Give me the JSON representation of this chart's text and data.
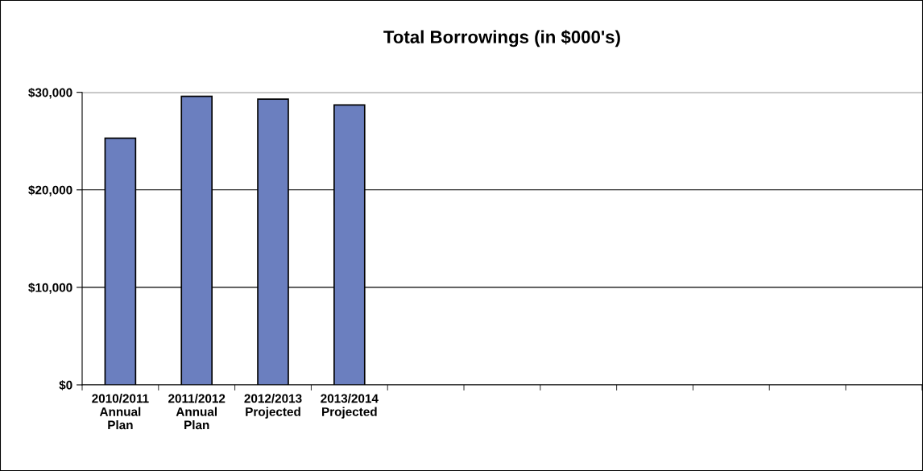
{
  "chart_data": {
    "type": "bar",
    "title": "Total Borrowings (in $000's)",
    "categories": [
      "2010/2011\nAnnual\nPlan",
      "2011/2012\nAnnual\nPlan",
      "2012/2013\nProjected",
      "2013/2014\nProjected",
      null,
      null,
      null,
      null,
      null,
      null,
      null
    ],
    "values": [
      25300,
      29600,
      29300,
      28700,
      null,
      null,
      null,
      null,
      null,
      null,
      null
    ],
    "color": "#6b7fbf",
    "ylim": [
      0,
      30000
    ],
    "yticks": [
      {
        "value": 0,
        "label": "$0"
      },
      {
        "value": 10000,
        "label": "$10,000"
      },
      {
        "value": 20000,
        "label": "$20,000"
      },
      {
        "value": 30000,
        "label": "$30,000"
      }
    ],
    "grid": "y"
  }
}
